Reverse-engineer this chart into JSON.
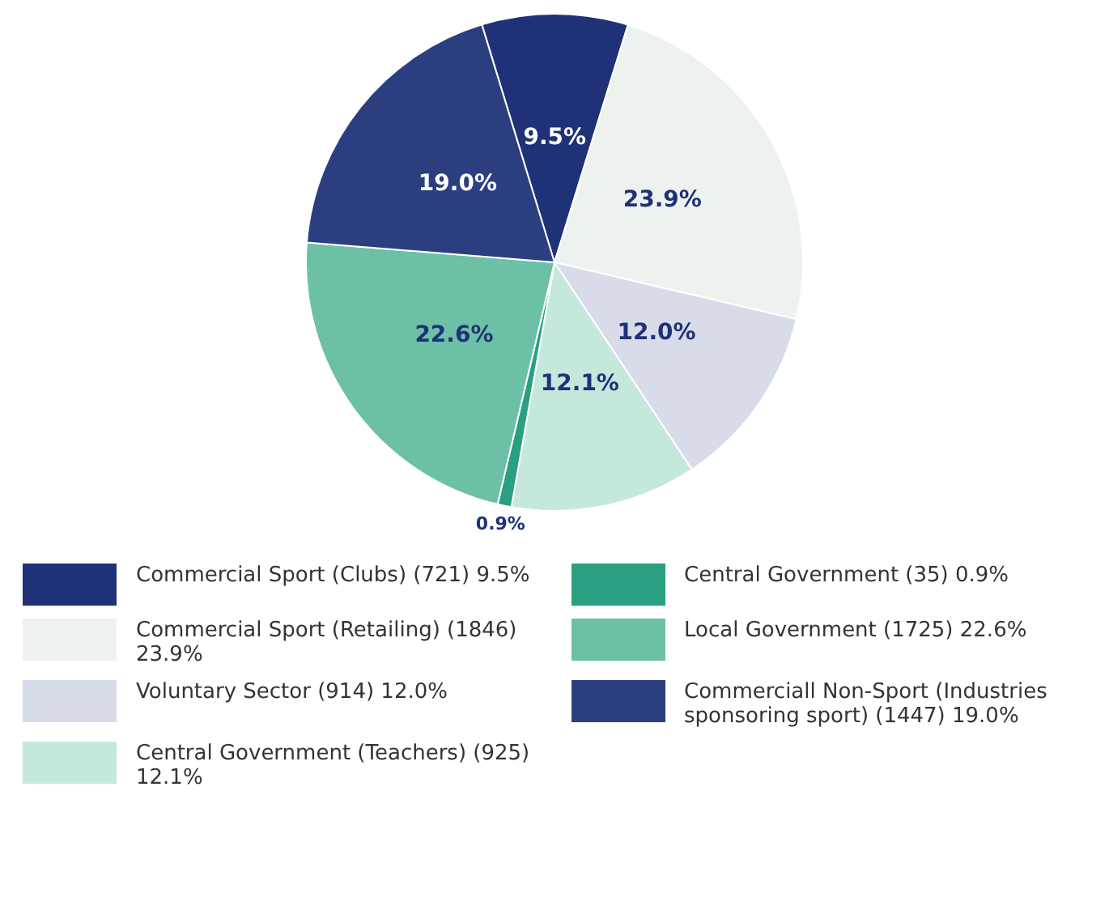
{
  "chart_data": {
    "type": "pie",
    "categories": [
      "Commercial Sport (Clubs) (721) 9.5%",
      "Commercial Sport (Retailing) (1846) 23.9%",
      "Voluntary Sector (914) 12.0%",
      "Central Government (Teachers) (925) 12.1%",
      "Central Government (35) 0.9%",
      "Local Government (1725) 22.6%",
      "Commerciall Non-Sport (Industries sponsoring sport) (1447) 19.0%"
    ],
    "values": [
      9.5,
      23.9,
      12.0,
      12.1,
      0.9,
      22.6,
      19.0
    ],
    "colors": [
      "#1f3278",
      "#eef2ee",
      "#d8dbe8",
      "#c5e8dc",
      "#2aa080",
      "#6cc0a6",
      "#2b3f80"
    ],
    "value_labels": [
      "9.5%",
      "23.9%",
      "12.0%",
      "12.1%",
      "0.9%",
      "22.6%",
      "19.0%"
    ],
    "legend": "bottom"
  }
}
